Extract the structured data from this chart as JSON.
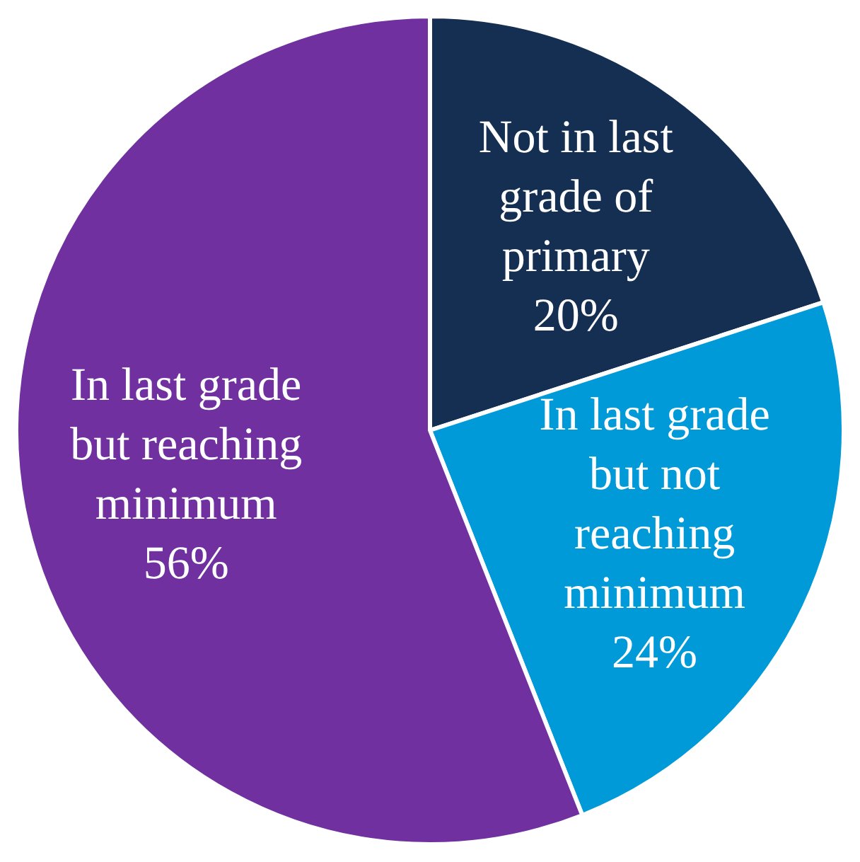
{
  "chart_data": {
    "type": "pie",
    "categories": [
      "Not in last grade of primary",
      "In last grade but not reaching minimum",
      "In last grade but reaching minimum"
    ],
    "values": [
      20,
      24,
      56
    ],
    "colors": [
      "#152f52",
      "#009ad8",
      "#7030a0"
    ],
    "value_labels": [
      "20%",
      "24%",
      "56%"
    ],
    "legend": false
  }
}
